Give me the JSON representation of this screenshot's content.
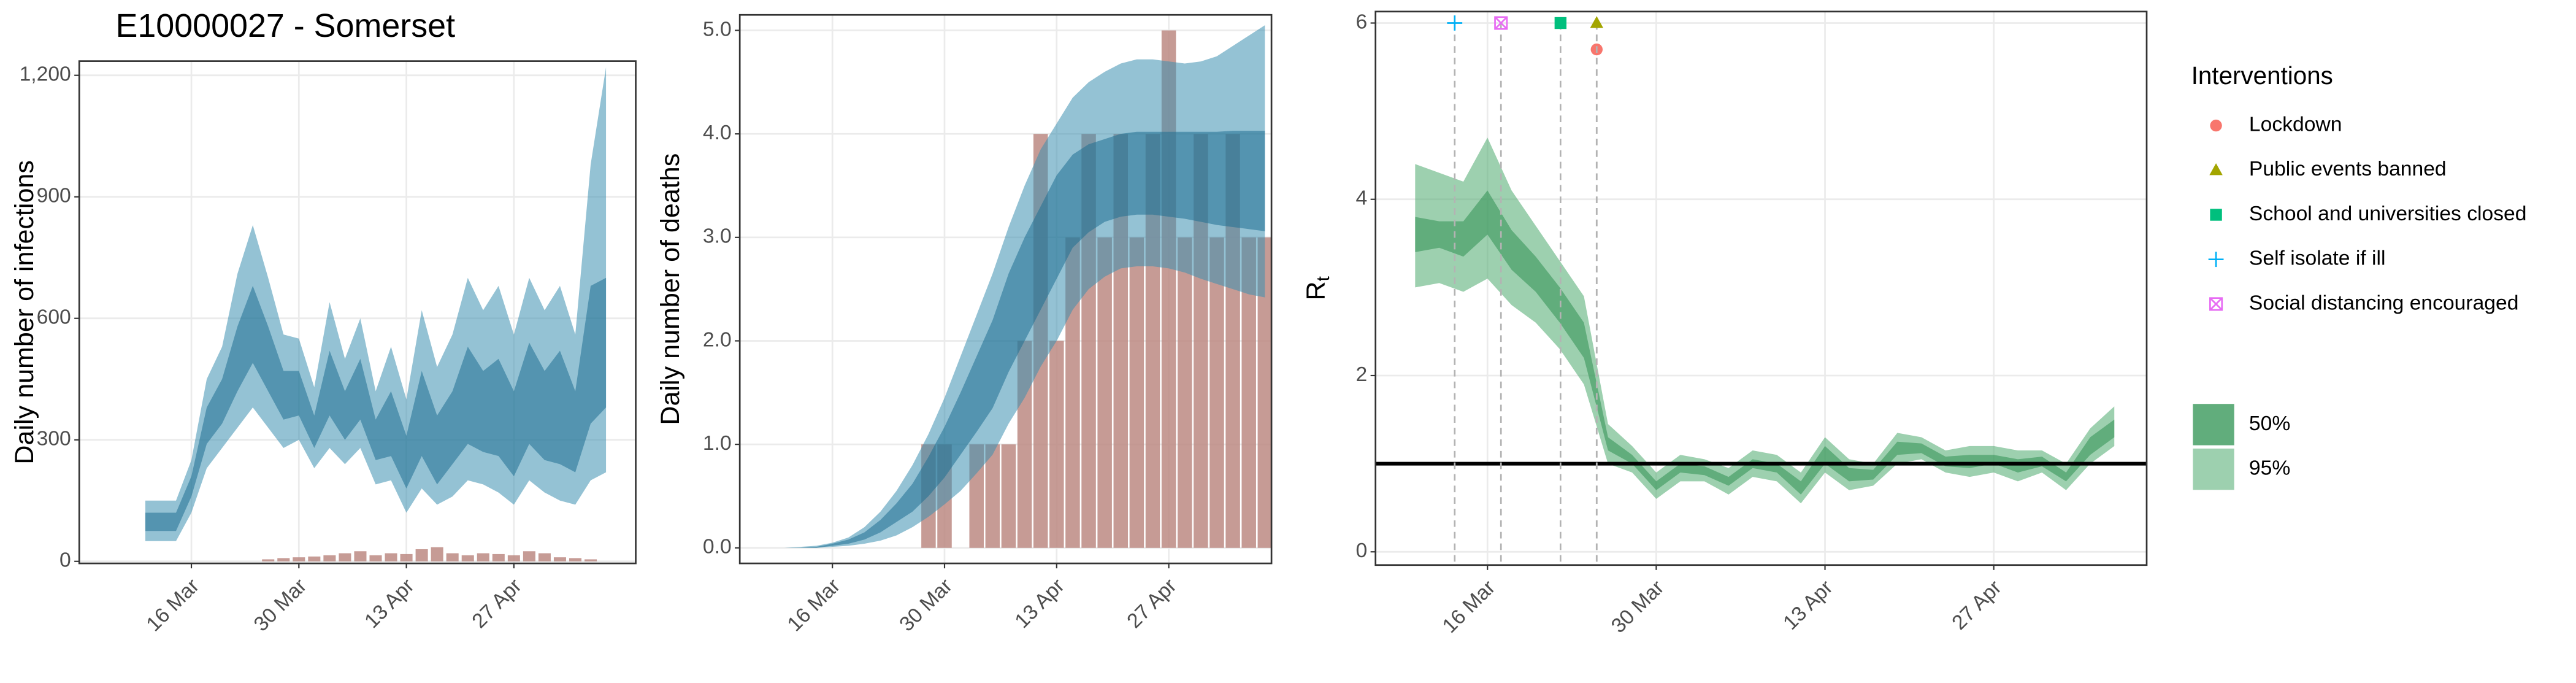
{
  "chart_data": [
    {
      "type": "area",
      "title": "E10000027 - Somerset",
      "ylabel": "Daily number of infections",
      "x": [
        null,
        null,
        null,
        "16 Mar",
        null,
        null,
        null,
        null,
        null,
        null,
        "30 Mar",
        null,
        null,
        null,
        null,
        null,
        null,
        "13 Apr",
        null,
        null,
        null,
        null,
        null,
        null,
        "27 Apr",
        null,
        null,
        null,
        null,
        null,
        null
      ],
      "ylim": [
        -5,
        1235
      ],
      "yticks": [
        0,
        300,
        600,
        900,
        {
          "value": 1200,
          "label": "1,200"
        }
      ],
      "grid": true,
      "bars": {
        "color": "#bc8a82",
        "values": [
          0,
          0,
          0,
          0,
          0,
          0,
          0,
          0,
          5,
          8,
          10,
          12,
          15,
          20,
          25,
          15,
          20,
          18,
          30,
          35,
          20,
          15,
          20,
          18,
          15,
          25,
          20,
          10,
          8,
          5,
          0
        ]
      },
      "bands": [
        {
          "color": "#3d8fb0",
          "lower": [
            50,
            50,
            50,
            120,
            230,
            280,
            330,
            380,
            330,
            280,
            300,
            230,
            280,
            240,
            280,
            190,
            200,
            120,
            180,
            140,
            160,
            200,
            190,
            170,
            140,
            200,
            170,
            150,
            140,
            200,
            220
          ],
          "upper": [
            150,
            150,
            150,
            250,
            450,
            530,
            710,
            830,
            700,
            560,
            550,
            430,
            640,
            500,
            600,
            420,
            530,
            400,
            620,
            480,
            560,
            700,
            620,
            680,
            560,
            700,
            620,
            680,
            560,
            980,
            1220
          ]
        },
        {
          "color": "#1f6f91",
          "lower": [
            75,
            75,
            75,
            160,
            290,
            340,
            420,
            490,
            420,
            350,
            360,
            280,
            360,
            300,
            350,
            250,
            260,
            180,
            260,
            190,
            240,
            290,
            270,
            260,
            210,
            290,
            250,
            240,
            220,
            340,
            380
          ],
          "upper": [
            120,
            120,
            120,
            210,
            380,
            450,
            580,
            680,
            580,
            470,
            470,
            360,
            520,
            420,
            500,
            350,
            420,
            310,
            470,
            360,
            420,
            530,
            470,
            500,
            420,
            540,
            470,
            520,
            420,
            680,
            700
          ]
        }
      ]
    },
    {
      "type": "area",
      "ylabel": "Daily number of deaths",
      "x": [
        null,
        null,
        null,
        "16 Mar",
        null,
        null,
        null,
        null,
        null,
        null,
        "30 Mar",
        null,
        null,
        null,
        null,
        null,
        null,
        "13 Apr",
        null,
        null,
        null,
        null,
        null,
        null,
        "27 Apr",
        null,
        null,
        null,
        null,
        null,
        null
      ],
      "ylim": [
        -0.15,
        5.15
      ],
      "yticks": [
        {
          "value": 0,
          "label": "0.0"
        },
        {
          "value": 1,
          "label": "1.0"
        },
        {
          "value": 2,
          "label": "2.0"
        },
        {
          "value": 3,
          "label": "3.0"
        },
        {
          "value": 4,
          "label": "4.0"
        },
        {
          "value": 5,
          "label": "5.0"
        }
      ],
      "grid": true,
      "bars": {
        "color": "#bc8a82",
        "values": [
          0,
          0,
          0,
          0,
          0,
          0,
          0,
          0,
          0,
          1,
          1,
          0,
          1,
          1,
          1,
          2,
          4,
          2,
          3,
          4,
          3,
          4,
          3,
          4,
          5,
          3,
          4,
          3,
          4,
          3,
          3
        ]
      },
      "bands": [
        {
          "color": "#3d8fb0",
          "lower": [
            0,
            0,
            0,
            0.01,
            0.02,
            0.04,
            0.07,
            0.12,
            0.2,
            0.3,
            0.42,
            0.55,
            0.72,
            0.9,
            1.2,
            1.45,
            1.75,
            2.0,
            2.3,
            2.5,
            2.62,
            2.7,
            2.72,
            2.72,
            2.7,
            2.66,
            2.6,
            2.55,
            2.5,
            2.45,
            2.42
          ],
          "upper": [
            0,
            0.01,
            0.02,
            0.05,
            0.1,
            0.2,
            0.35,
            0.55,
            0.8,
            1.1,
            1.45,
            1.85,
            2.25,
            2.65,
            3.1,
            3.5,
            3.85,
            4.1,
            4.35,
            4.5,
            4.6,
            4.68,
            4.72,
            4.72,
            4.7,
            4.68,
            4.7,
            4.75,
            4.85,
            4.95,
            5.05
          ]
        },
        {
          "color": "#1f6f91",
          "lower": [
            0,
            0,
            0,
            0.02,
            0.04,
            0.08,
            0.15,
            0.25,
            0.35,
            0.5,
            0.68,
            0.9,
            1.12,
            1.35,
            1.7,
            2.0,
            2.3,
            2.6,
            2.9,
            3.05,
            3.15,
            3.2,
            3.22,
            3.22,
            3.2,
            3.18,
            3.15,
            3.12,
            3.1,
            3.08,
            3.06
          ],
          "upper": [
            0,
            0,
            0.01,
            0.04,
            0.08,
            0.15,
            0.27,
            0.43,
            0.62,
            0.88,
            1.17,
            1.5,
            1.85,
            2.2,
            2.65,
            3.0,
            3.3,
            3.6,
            3.8,
            3.9,
            3.95,
            4.0,
            4.02,
            4.02,
            4.02,
            4.02,
            4.02,
            4.02,
            4.03,
            4.03,
            4.03
          ]
        }
      ]
    },
    {
      "type": "area",
      "ylabel": "R",
      "ylabel_sub": "t",
      "x": [
        null,
        null,
        null,
        "16 Mar",
        null,
        null,
        null,
        null,
        null,
        null,
        "30 Mar",
        null,
        null,
        null,
        null,
        null,
        null,
        "13 Apr",
        null,
        null,
        null,
        null,
        null,
        null,
        "27 Apr",
        null,
        null,
        null,
        null,
        null,
        null
      ],
      "ylim": [
        -0.15,
        6.13
      ],
      "yticks": [
        0,
        2,
        4,
        6
      ],
      "grid": true,
      "hline": 1,
      "bands": [
        {
          "name": "95%",
          "color": "#4caa6e",
          "lower": [
            3.0,
            3.05,
            2.95,
            3.1,
            2.8,
            2.6,
            2.3,
            1.9,
            1.0,
            0.9,
            0.6,
            0.8,
            0.8,
            0.65,
            0.85,
            0.8,
            0.55,
            0.9,
            0.7,
            0.75,
            1.0,
            1.05,
            0.9,
            0.85,
            0.9,
            0.8,
            0.9,
            0.7,
            1.0,
            1.2,
            null
          ],
          "upper": [
            4.4,
            4.3,
            4.2,
            4.7,
            4.1,
            3.7,
            3.3,
            2.9,
            1.45,
            1.2,
            0.9,
            1.1,
            1.05,
            0.95,
            1.15,
            1.1,
            0.9,
            1.3,
            1.05,
            1.0,
            1.35,
            1.3,
            1.15,
            1.2,
            1.2,
            1.15,
            1.15,
            1.0,
            1.4,
            1.65,
            null
          ]
        },
        {
          "name": "50%",
          "color": "#2f8f52",
          "lower": [
            3.4,
            3.45,
            3.35,
            3.6,
            3.2,
            2.95,
            2.6,
            2.2,
            1.15,
            1.0,
            0.7,
            0.9,
            0.87,
            0.75,
            0.95,
            0.9,
            0.65,
            1.0,
            0.8,
            0.82,
            1.1,
            1.12,
            0.97,
            0.95,
            1.0,
            0.9,
            0.97,
            0.8,
            1.1,
            1.3,
            null
          ],
          "upper": [
            3.8,
            3.75,
            3.75,
            4.1,
            3.65,
            3.35,
            3.0,
            2.6,
            1.3,
            1.1,
            0.8,
            1.0,
            0.97,
            0.85,
            1.05,
            1.0,
            0.8,
            1.2,
            0.95,
            0.93,
            1.25,
            1.23,
            1.08,
            1.1,
            1.1,
            1.05,
            1.08,
            0.9,
            1.3,
            1.5,
            null
          ]
        }
      ],
      "legend_title": "Interventions",
      "interventions": [
        {
          "name": "Lockdown",
          "x": 7.53,
          "y": 5.7,
          "color": "#F8766D",
          "shape": "circle"
        },
        {
          "name": "Public events banned",
          "x": 7.53,
          "y": 6,
          "color": "#A3A500",
          "shape": "triangle"
        },
        {
          "name": "School and universities closed",
          "x": 6.03,
          "y": 6,
          "color": "#00BF7D",
          "shape": "square"
        },
        {
          "name": "Self isolate if ill",
          "x": 1.64,
          "y": 6,
          "color": "#00B0F6",
          "shape": "plus"
        },
        {
          "name": "Social distancing encouraged",
          "x": 3.56,
          "y": 6,
          "color": "#E76BF3",
          "shape": "square-x"
        }
      ]
    }
  ]
}
